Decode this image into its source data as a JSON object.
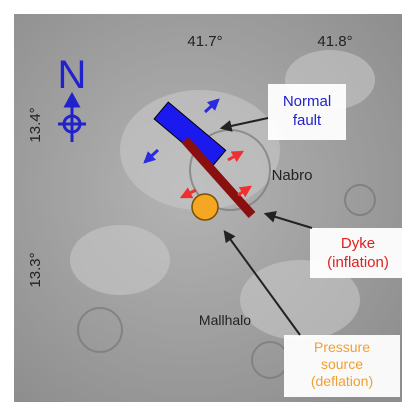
{
  "map": {
    "longitude_labels": [
      "41.7°",
      "41.8°"
    ],
    "latitude_labels": [
      "13.4°",
      "13.3°"
    ],
    "north": "N",
    "labels": {
      "normal_fault": [
        "Normal",
        "fault"
      ],
      "nabro": "Nabro",
      "dyke": [
        "Dyke",
        "(inflation)"
      ],
      "mallahle": "Mallhalo",
      "pressure_source": [
        "Pressure",
        "source",
        "(deflation)"
      ]
    }
  }
}
